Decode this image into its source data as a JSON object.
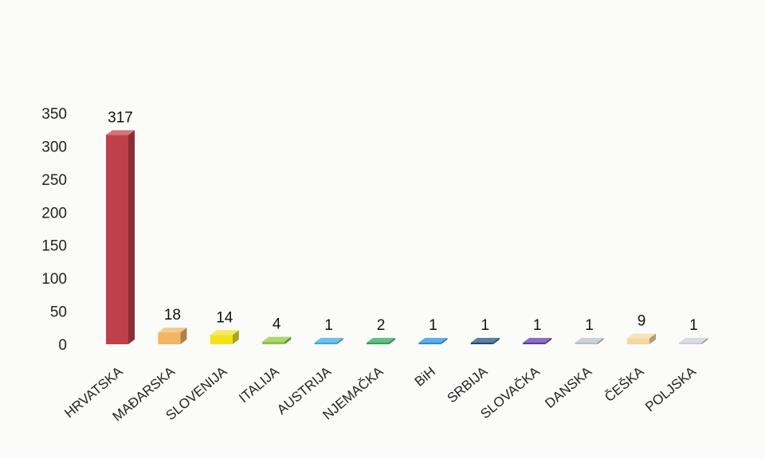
{
  "chart_data": {
    "type": "bar",
    "categories": [
      "HRVATSKA",
      "MAĐARSKA",
      "SLOVENIJA",
      "ITALIJA",
      "AUSTRIJA",
      "NJEMAČKA",
      "BiH",
      "SRBIJA",
      "SLOVAČKA",
      "DANSKA",
      "ČEŠKA",
      "POLJSKA"
    ],
    "values": [
      317,
      18,
      14,
      4,
      1,
      2,
      1,
      1,
      1,
      1,
      9,
      1
    ],
    "data_labels": [
      "317",
      "18",
      "14",
      "4",
      "1",
      "2",
      "1",
      "1",
      "1",
      "1",
      "9",
      "1"
    ],
    "bar_colors": [
      "#c0404a",
      "#f0b660",
      "#f2e21a",
      "#8cc63e",
      "#3aa8e8",
      "#2aa552",
      "#1f8fe0",
      "#1f4a7a",
      "#5b3aa8",
      "#b8bfcc",
      "#f2d9a0",
      "#c9ced8"
    ],
    "bar_style": "3d",
    "ylim": [
      0,
      350
    ],
    "yticks": [
      "0",
      "50",
      "100",
      "150",
      "200",
      "250",
      "300",
      "350"
    ],
    "grid": false,
    "legend": "none",
    "title": "",
    "xlabel": "",
    "ylabel": ""
  }
}
